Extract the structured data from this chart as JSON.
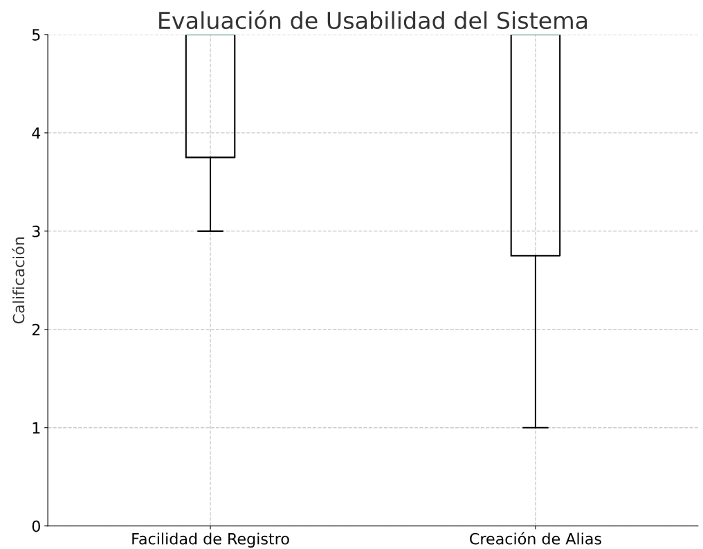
{
  "chart_data": {
    "type": "box",
    "title": "Evaluación de Usabilidad del Sistema",
    "ylabel": "Calificación",
    "categories": [
      "Facilidad de Registro",
      "Creación de Alias"
    ],
    "boxes": [
      {
        "low": 3,
        "q1": 3.75,
        "median": 5,
        "q3": 5,
        "high": 5
      },
      {
        "low": 1,
        "q1": 2.75,
        "median": 5,
        "q3": 5,
        "high": 5
      }
    ],
    "color": "#000000",
    "ylim": [
      0,
      5
    ],
    "yticks": [
      0,
      1,
      2,
      3,
      4,
      5
    ],
    "grid": true
  }
}
